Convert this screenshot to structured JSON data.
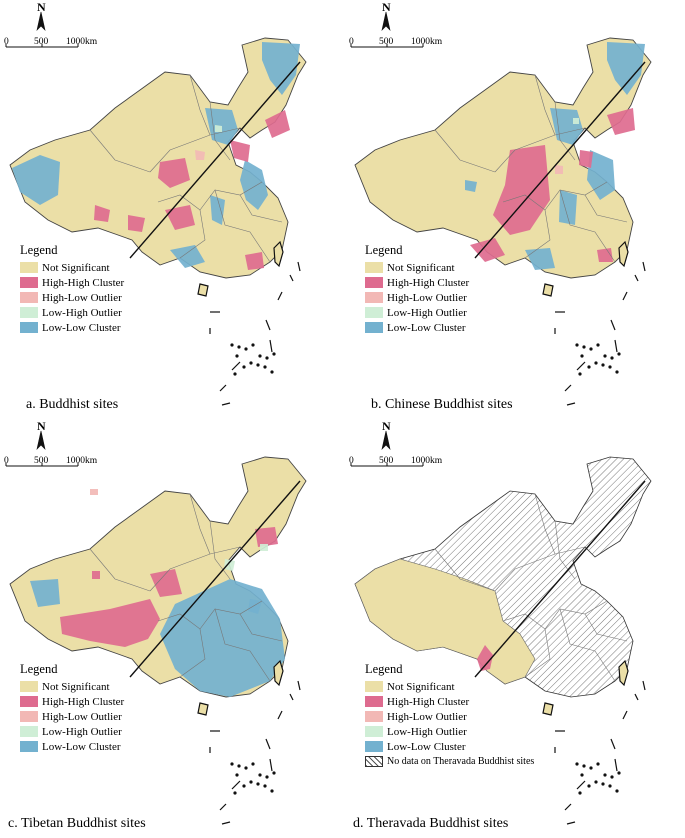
{
  "colors": {
    "not_significant": "#ebdfa7",
    "high_high": "#de6b8f",
    "high_low": "#f2b8b5",
    "low_high": "#cfeed6",
    "low_low": "#73b1cf",
    "no_data": "#ffffff"
  },
  "north_label": "N",
  "scale_labels": [
    "0",
    "500",
    "1000km"
  ],
  "legend": {
    "title": "Legend",
    "items": [
      {
        "key": "not_significant",
        "label": "Not Significant"
      },
      {
        "key": "high_high",
        "label": "High-High Cluster"
      },
      {
        "key": "high_low",
        "label": "High-Low Outlier"
      },
      {
        "key": "low_high",
        "label": "Low-High Outlier"
      },
      {
        "key": "low_low",
        "label": "Low-Low Cluster"
      }
    ],
    "no_data_label": "No data on Theravada Buddhist sites"
  },
  "panels": [
    {
      "id": "a",
      "caption": "a. Buddhist sites"
    },
    {
      "id": "b",
      "caption": "b. Chinese Buddhist sites"
    },
    {
      "id": "c",
      "caption": "c. Tibetan Buddhist sites"
    },
    {
      "id": "d",
      "caption": "d. Theravada Buddhist sites"
    }
  ]
}
